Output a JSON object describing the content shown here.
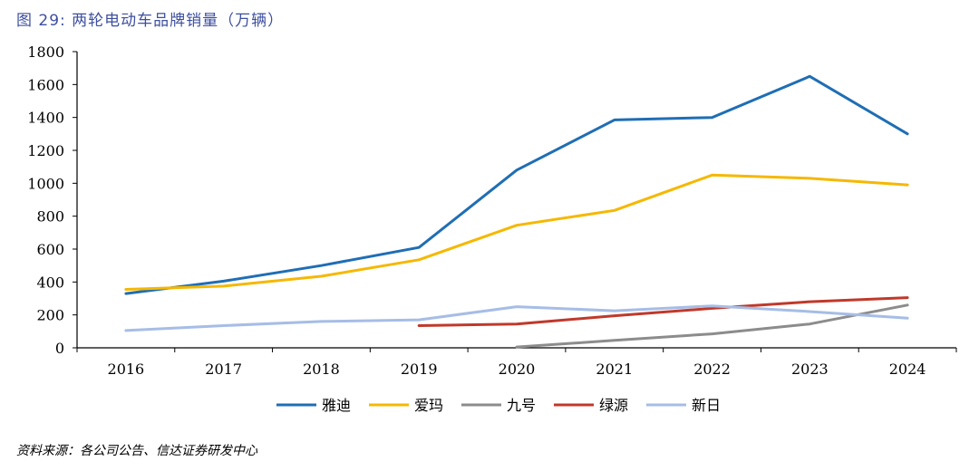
{
  "figure": {
    "title": "图 29:  两轮电动车品牌销量（万辆）",
    "source": "资料来源：各公司公告、信达证券研发中心"
  },
  "chart_data": {
    "type": "line",
    "title": "",
    "xlabel": "",
    "ylabel": "",
    "x": [
      "2016",
      "2017",
      "2018",
      "2019",
      "2020",
      "2021",
      "2022",
      "2023",
      "2024"
    ],
    "ylim": [
      0,
      1800
    ],
    "yticks": [
      0,
      200,
      400,
      600,
      800,
      1000,
      1200,
      1400,
      1600,
      1800
    ],
    "grid": false,
    "legend_position": "bottom",
    "series": [
      {
        "name": "雅迪",
        "color": "#1f6eb4",
        "values": [
          330,
          405,
          500,
          610,
          1080,
          1385,
          1400,
          1650,
          1300
        ]
      },
      {
        "name": "爱玛",
        "color": "#f5b800",
        "values": [
          355,
          375,
          435,
          535,
          745,
          835,
          1050,
          1030,
          990
        ]
      },
      {
        "name": "九号",
        "color": "#8c8c8c",
        "values": [
          null,
          null,
          null,
          null,
          5,
          45,
          85,
          145,
          260
        ]
      },
      {
        "name": "绿源",
        "color": "#c0392b",
        "values": [
          null,
          null,
          null,
          135,
          145,
          195,
          240,
          280,
          305
        ]
      },
      {
        "name": "新日",
        "color": "#a6bde6",
        "values": [
          105,
          135,
          160,
          170,
          250,
          225,
          255,
          220,
          180
        ]
      }
    ]
  }
}
